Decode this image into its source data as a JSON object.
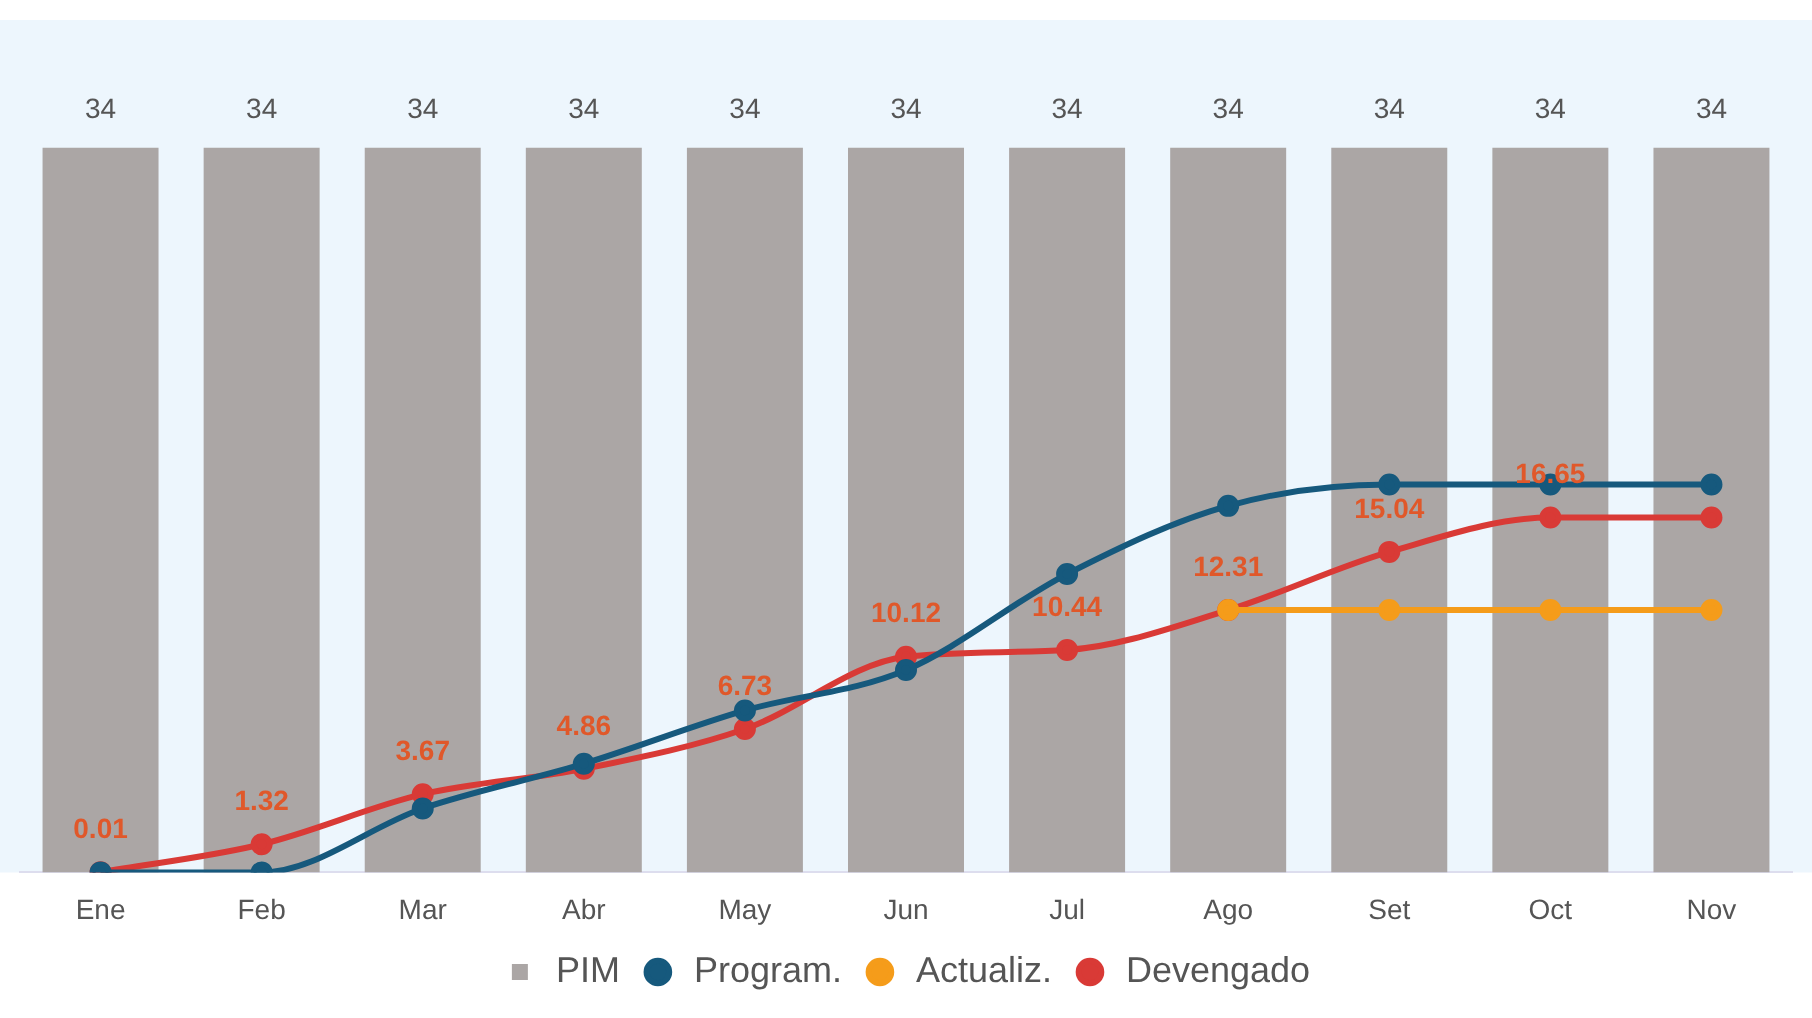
{
  "chart_data": {
    "type": "bar",
    "categories": [
      "Ene",
      "Feb",
      "Mar",
      "Abr",
      "May",
      "Jun",
      "Jul",
      "Ago",
      "Set",
      "Oct",
      "Nov"
    ],
    "series": [
      {
        "name": "PIM",
        "color": "#aba6a5",
        "values": [
          34,
          34,
          34,
          34,
          34,
          34,
          34,
          34,
          34,
          34,
          34
        ],
        "value_labels": [
          "34",
          "34",
          "34",
          "34",
          "34",
          "34",
          "34",
          "34",
          "34",
          "34",
          "34"
        ]
      },
      {
        "name": "Program.",
        "type": "line",
        "color": "#16597d",
        "values": [
          0,
          0,
          3.0,
          5.1,
          7.6,
          9.5,
          14.0,
          17.2,
          18.2,
          18.2,
          18.2
        ]
      },
      {
        "name": "Actualiz.",
        "type": "line",
        "color": "#f59c1a",
        "values": [
          null,
          null,
          null,
          null,
          null,
          null,
          null,
          12.31,
          12.31,
          12.31,
          12.31
        ]
      },
      {
        "name": "Devengado",
        "type": "line",
        "color": "#d93a36",
        "values": [
          0.01,
          1.32,
          3.67,
          4.86,
          6.73,
          10.12,
          10.44,
          12.31,
          15.04,
          16.65,
          16.65
        ],
        "value_labels": [
          "0.01",
          "1.32",
          "3.67",
          "4.86",
          "6.73",
          "10.12",
          "10.44",
          "12.31",
          "15.04",
          "16.65",
          null
        ]
      }
    ],
    "ylim": [
      0,
      40
    ],
    "legend": "bottom",
    "marker": "circle"
  }
}
